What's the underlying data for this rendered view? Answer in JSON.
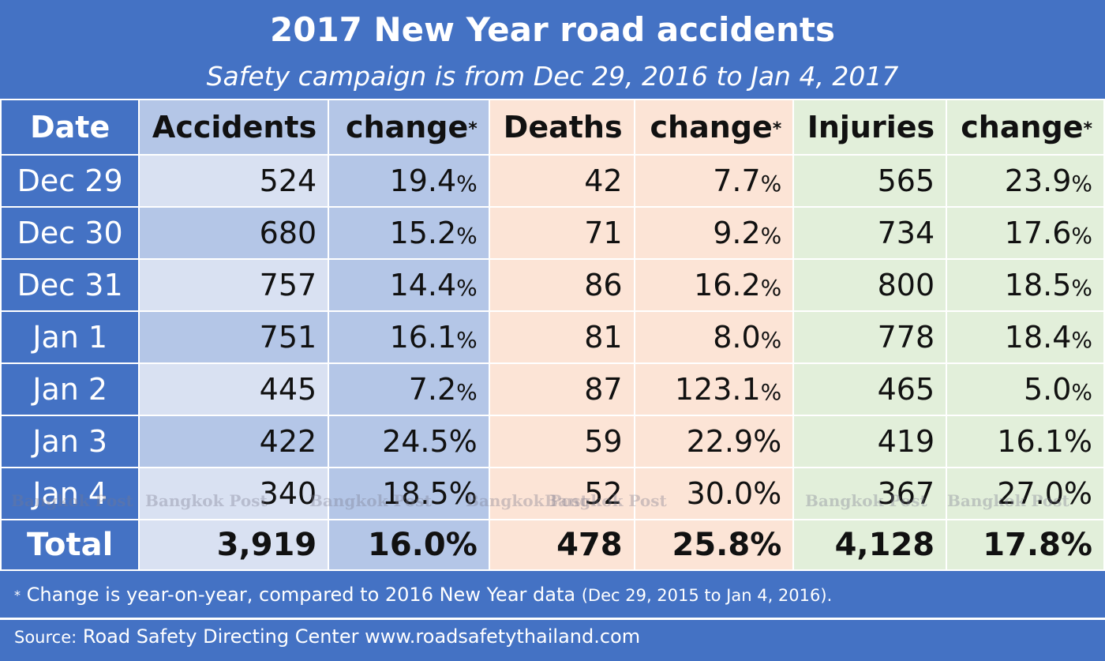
{
  "title": "2017 New Year road accidents",
  "subtitle": "Safety campaign is from Dec 29, 2016 to Jan 4, 2017",
  "chart_data": {
    "type": "table",
    "headers": [
      "Date",
      "Accidents",
      "change",
      "Deaths",
      "change",
      "Injuries",
      "change"
    ],
    "header_asterisk": "*",
    "rows": [
      {
        "date": "Dec 29",
        "accidents": "524",
        "acc_change": "19.4",
        "deaths": "42",
        "dea_change": "7.7",
        "injuries": "565",
        "inj_change": "23.9"
      },
      {
        "date": "Dec 30",
        "accidents": "680",
        "acc_change": "15.2",
        "deaths": "71",
        "dea_change": "9.2",
        "injuries": "734",
        "inj_change": "17.6"
      },
      {
        "date": "Dec 31",
        "accidents": "757",
        "acc_change": "14.4",
        "deaths": "86",
        "dea_change": "16.2",
        "injuries": "800",
        "inj_change": "18.5"
      },
      {
        "date": "Jan 1",
        "accidents": "751",
        "acc_change": "16.1",
        "deaths": "81",
        "dea_change": "8.0",
        "injuries": "778",
        "inj_change": "18.4"
      },
      {
        "date": "Jan 2",
        "accidents": "445",
        "acc_change": "7.2",
        "deaths": "87",
        "dea_change": "123.1",
        "injuries": "465",
        "inj_change": "5.0"
      },
      {
        "date": "Jan 3",
        "accidents": "422",
        "acc_change": "24.5",
        "deaths": "59",
        "dea_change": "22.9",
        "injuries": "419",
        "inj_change": "16.1"
      },
      {
        "date": "Jan 4",
        "accidents": "340",
        "acc_change": "18.5",
        "deaths": "52",
        "dea_change": "30.0",
        "injuries": "367",
        "inj_change": "27.0"
      }
    ],
    "total": {
      "date": "Total",
      "accidents": "3,919",
      "acc_change": "16.0%",
      "deaths": "478",
      "dea_change": "25.8%",
      "injuries": "4,128",
      "inj_change": "17.8%"
    },
    "percent_sign": "%",
    "colors": {
      "frame": "#4472c4",
      "accidents": "#d9e1f2",
      "accidents_alt": "#b4c6e7",
      "deaths": "#fce4d6",
      "injuries": "#e2efda"
    }
  },
  "footnote": {
    "asterisk": "*",
    "text": "Change is year-on-year, compared to 2016 New Year data",
    "paren": "(Dec 29, 2015 to Jan 4, 2016)."
  },
  "source": {
    "label": "Source:",
    "text": "Road Safety Directing Center www.roadsafetythailand.com"
  },
  "watermark": "Bangkok Post"
}
